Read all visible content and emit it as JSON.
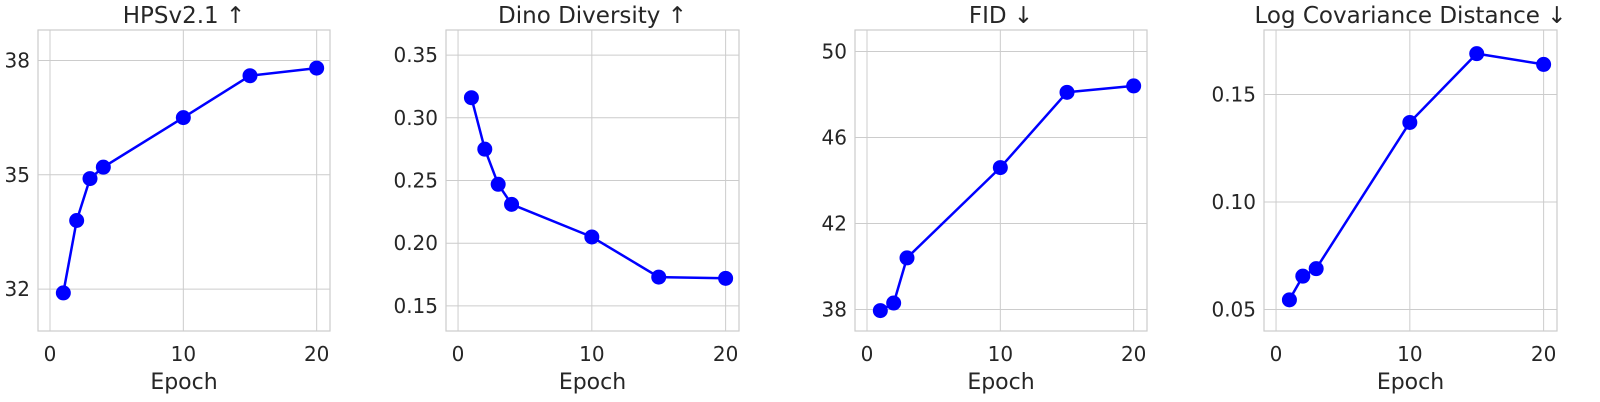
{
  "chart_data": [
    {
      "type": "line",
      "title": "HPSv2.1 ↑",
      "xlabel": "Epoch",
      "ylabel": "",
      "x": [
        1,
        2,
        3,
        4,
        10,
        15,
        20
      ],
      "values": [
        31.9,
        33.8,
        34.9,
        35.2,
        36.5,
        37.6,
        37.8
      ],
      "xlim": [
        -0.9,
        21
      ],
      "ylim": [
        30.9,
        38.8
      ],
      "xticks": [
        0,
        10,
        20
      ],
      "yticks": [
        32,
        35,
        38
      ],
      "ytick_labels": [
        "32",
        "35",
        "38"
      ],
      "grid": true,
      "color": "#0000ff"
    },
    {
      "type": "line",
      "title": "Dino Diversity ↑",
      "xlabel": "Epoch",
      "ylabel": "",
      "x": [
        1,
        2,
        3,
        4,
        10,
        15,
        20
      ],
      "values": [
        0.316,
        0.275,
        0.247,
        0.231,
        0.205,
        0.173,
        0.172
      ],
      "xlim": [
        -0.9,
        21
      ],
      "ylim": [
        0.13,
        0.37
      ],
      "xticks": [
        0,
        10,
        20
      ],
      "yticks": [
        0.15,
        0.2,
        0.25,
        0.3,
        0.35
      ],
      "ytick_labels": [
        "0.15",
        "0.20",
        "0.25",
        "0.30",
        "0.35"
      ],
      "grid": true,
      "color": "#0000ff"
    },
    {
      "type": "line",
      "title": "FID ↓",
      "xlabel": "Epoch",
      "ylabel": "",
      "x": [
        1,
        2,
        3,
        10,
        15,
        20
      ],
      "values": [
        37.95,
        38.3,
        40.4,
        44.6,
        48.1,
        48.4
      ],
      "xlim": [
        -0.9,
        21
      ],
      "ylim": [
        37.0,
        51.0
      ],
      "xticks": [
        0,
        10,
        20
      ],
      "yticks": [
        38,
        42,
        46,
        50
      ],
      "ytick_labels": [
        "38",
        "42",
        "46",
        "50"
      ],
      "grid": true,
      "color": "#0000ff"
    },
    {
      "type": "line",
      "title": "Log Covariance Distance ↓",
      "xlabel": "Epoch",
      "ylabel": "",
      "x": [
        1,
        2,
        3,
        10,
        15,
        20
      ],
      "values": [
        0.0545,
        0.0655,
        0.069,
        0.137,
        0.169,
        0.164
      ],
      "xlim": [
        -0.9,
        21
      ],
      "ylim": [
        0.04,
        0.18
      ],
      "xticks": [
        0,
        10,
        20
      ],
      "yticks": [
        0.05,
        0.1,
        0.15
      ],
      "ytick_labels": [
        "0.05",
        "0.10",
        "0.15"
      ],
      "grid": true,
      "color": "#0000ff"
    }
  ]
}
